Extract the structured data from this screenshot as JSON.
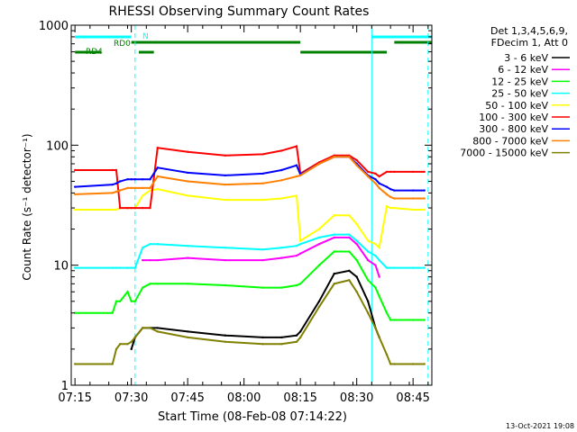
{
  "title": "RHESSI Observing Summary Count Rates",
  "footer_date": "13-Oct-2021 19:08",
  "chart_data": {
    "type": "line",
    "title": "RHESSI Observing Summary Count Rates",
    "xlabel": "Start Time (08-Feb-08 07:14:22)",
    "ylabel": "Count Rate (s⁻¹ detector⁻¹)",
    "yscale": "log",
    "ylim": [
      1,
      1000
    ],
    "xlim": [
      "07:14",
      "08:50"
    ],
    "x_ticks": [
      "07:15",
      "07:30",
      "07:45",
      "08:00",
      "08:15",
      "08:30",
      "08:45"
    ],
    "y_ticks": [
      "1",
      "10",
      "100",
      "1000"
    ],
    "legend_header": [
      "Det 1,3,4,5,6,9,",
      "FDecim 1, Att 0"
    ],
    "legend_position": "right",
    "x": [
      "07:15",
      "07:25",
      "07:26",
      "07:27",
      "07:29",
      "07:30",
      "07:31",
      "07:33",
      "07:35",
      "07:37",
      "07:45",
      "07:55",
      "08:05",
      "08:10",
      "08:14",
      "08:15",
      "08:20",
      "08:24",
      "08:28",
      "08:30",
      "08:33",
      "08:35",
      "08:36",
      "08:38",
      "08:39",
      "08:40",
      "08:45",
      "08:48"
    ],
    "series": [
      {
        "name": "3 - 6 keV",
        "color": "#000000",
        "values": [
          null,
          null,
          null,
          null,
          null,
          2,
          2.5,
          3,
          3,
          3,
          2.8,
          2.6,
          2.5,
          2.5,
          2.6,
          2.8,
          5,
          8.5,
          9,
          8,
          5,
          3,
          2.5,
          null,
          null,
          null,
          null,
          null
        ]
      },
      {
        "name": "6 - 12 keV",
        "color": "#ff00ff",
        "values": [
          null,
          null,
          null,
          null,
          null,
          null,
          null,
          11,
          11,
          11,
          11.5,
          11,
          11,
          11.5,
          12,
          12.5,
          15,
          17,
          17,
          15,
          11,
          10,
          8,
          null,
          null,
          null,
          null,
          null
        ]
      },
      {
        "name": "12 - 25 keV",
        "color": "#00ff00",
        "values": [
          4,
          4,
          5,
          5,
          6,
          5,
          5,
          6.5,
          7,
          7,
          7,
          6.8,
          6.5,
          6.5,
          6.8,
          7,
          10,
          13,
          13,
          11,
          7.5,
          6.5,
          5.5,
          4,
          3.5,
          3.5,
          3.5,
          3.5
        ]
      },
      {
        "name": "25 - 50 keV",
        "color": "#00ffff",
        "values": [
          9.5,
          9.5,
          9.5,
          9.5,
          9.5,
          9.5,
          9.5,
          14,
          15,
          15,
          14.5,
          14,
          13.5,
          14,
          14.5,
          15,
          17,
          18,
          18,
          16,
          13,
          12,
          11,
          9.5,
          9.5,
          9.5,
          9.5,
          9.5
        ]
      },
      {
        "name": "50 - 100 keV",
        "color": "#ffff00",
        "values": [
          29,
          29,
          29,
          30,
          30,
          30,
          30,
          38,
          42,
          43,
          38,
          35,
          35,
          36,
          38,
          16,
          20,
          26,
          26,
          22,
          16,
          15,
          14,
          31,
          30,
          30,
          29,
          29
        ]
      },
      {
        "name": "100 - 300 keV",
        "color": "#ff0000",
        "values": [
          62,
          62,
          62,
          30,
          30,
          30,
          30,
          30,
          30,
          95,
          88,
          82,
          84,
          90,
          98,
          58,
          72,
          82,
          82,
          75,
          60,
          58,
          55,
          60,
          60,
          60,
          60,
          60
        ]
      },
      {
        "name": "300 - 800 keV",
        "color": "#0000ff",
        "values": [
          45,
          47,
          48,
          50,
          52,
          52,
          52,
          52,
          52,
          65,
          59,
          56,
          58,
          62,
          68,
          57,
          70,
          80,
          80,
          70,
          56,
          52,
          48,
          45,
          43,
          42,
          42,
          42
        ]
      },
      {
        "name": "800 - 7000 keV",
        "color": "#ff8000",
        "values": [
          39,
          40,
          41,
          42,
          44,
          44,
          44,
          44,
          44,
          55,
          50,
          47,
          48,
          51,
          55,
          56,
          70,
          80,
          80,
          68,
          55,
          48,
          44,
          39,
          37,
          36,
          36,
          36
        ]
      },
      {
        "name": "7000 - 15000 keV",
        "color": "#808000",
        "values": [
          1.5,
          1.5,
          2,
          2.2,
          2.2,
          2.3,
          2.5,
          3,
          3,
          2.8,
          2.5,
          2.3,
          2.2,
          2.2,
          2.3,
          2.5,
          4.5,
          7,
          7.5,
          6,
          4,
          3,
          2.5,
          1.8,
          1.5,
          1.5,
          1.5,
          1.5
        ]
      }
    ],
    "flag_bars": [
      {
        "label": "N",
        "color": "#00ffff",
        "segments": [
          [
            "07:15",
            "07:30"
          ],
          [
            "08:34",
            "08:50"
          ]
        ]
      },
      {
        "label": "RD0",
        "color": "#008000",
        "segments": [
          [
            "07:30",
            "08:15"
          ],
          [
            "08:40",
            "08:50"
          ]
        ]
      },
      {
        "label": "RD4",
        "color": "#008000",
        "segments": [
          [
            "07:15",
            "07:22"
          ],
          [
            "07:32",
            "07:36"
          ],
          [
            "08:15",
            "08:38"
          ]
        ]
      }
    ],
    "vertical_lines": {
      "solid": {
        "color": "#00ffff",
        "times": [
          "07:14",
          "08:34"
        ]
      },
      "dashed": {
        "color": "#00ffff",
        "times": [
          "07:31",
          "08:49"
        ]
      }
    },
    "grid": false
  }
}
